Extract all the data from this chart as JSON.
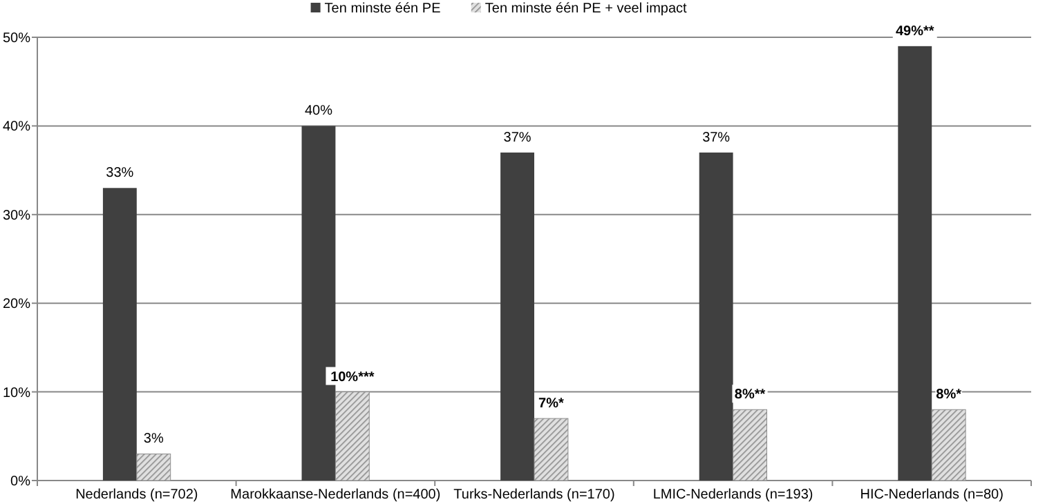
{
  "chart_data": {
    "type": "bar",
    "categories": [
      "Nederlands (n=702)",
      "Marokkaanse-Nederlands (n=400)",
      "Turks-Nederlands (n=170)",
      "LMIC-Nederlands (n=193)",
      "HIC-Nederlands (n=80)"
    ],
    "series": [
      {
        "name": "Ten minste één PE",
        "color": "#404040",
        "values": [
          33,
          40,
          37,
          37,
          49
        ],
        "value_labels": [
          "33%",
          "40%",
          "37%",
          "37%",
          "49%**"
        ]
      },
      {
        "name": "Ten minste één PE + veel impact",
        "color": "#8c8c8c",
        "values": [
          3,
          10,
          7,
          8,
          8
        ],
        "value_labels": [
          "3%",
          "10%***",
          "7%*",
          "8%**",
          "8%*"
        ]
      }
    ],
    "ylim": [
      0,
      50
    ],
    "yticks": [
      {
        "value": 0,
        "label": "0%"
      },
      {
        "value": 10,
        "label": "10%"
      },
      {
        "value": 20,
        "label": "20%"
      },
      {
        "value": 30,
        "label": "30%"
      },
      {
        "value": 40,
        "label": "40%"
      },
      {
        "value": 50,
        "label": "50%"
      }
    ],
    "grid": "y",
    "legend": "top"
  }
}
